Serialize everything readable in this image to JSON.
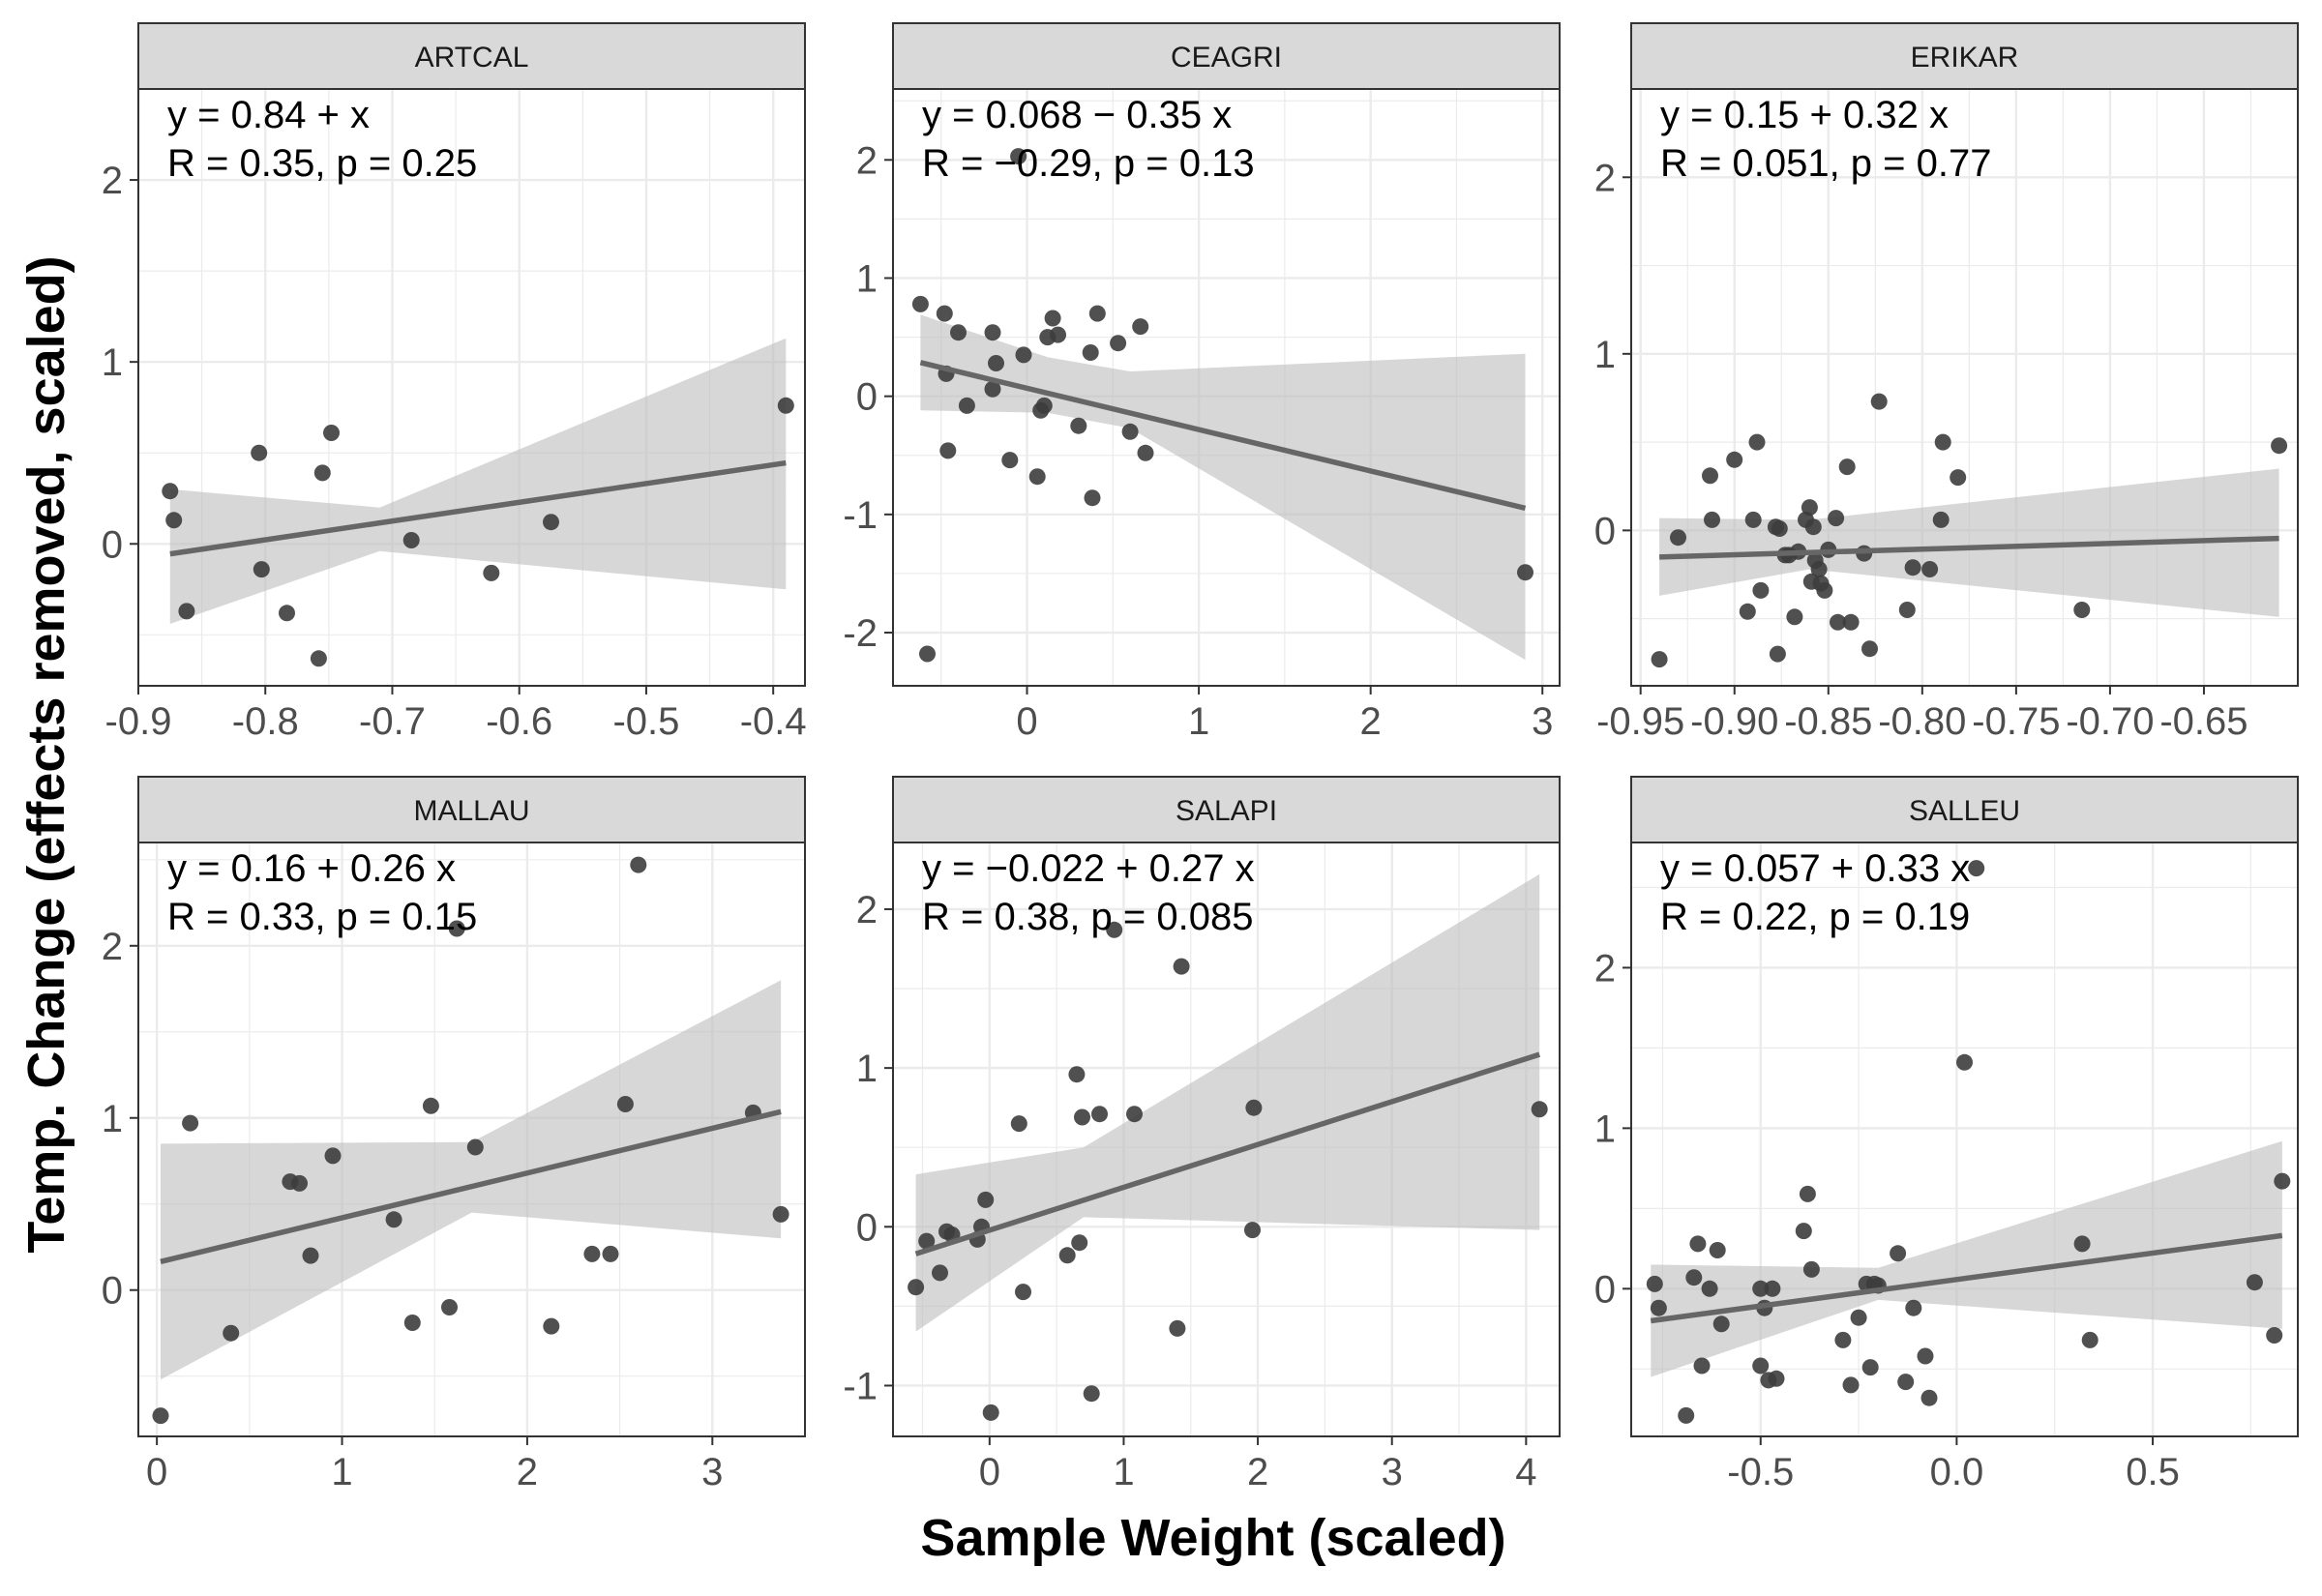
{
  "figure": {
    "xlabel": "Sample Weight (scaled)",
    "ylabel": "Temp. Change (effects removed, scaled)"
  },
  "colors": {
    "point": "#3d3d3d",
    "fit_line": "#666666",
    "ribbon": "#bdbdbd",
    "strip_bg": "#d9d9d9",
    "grid": "#ebebeb",
    "panel_border": "#333333"
  },
  "chart_data": [
    {
      "type": "scatter",
      "title": "ARTCAL",
      "equation": "y = 0.84 +  x",
      "stats": "R = 0.35, p = 0.25",
      "xlim": [
        -0.9,
        -0.375
      ],
      "ylim": [
        -0.78,
        2.5
      ],
      "xticks": [
        -0.9,
        -0.8,
        -0.7,
        -0.6,
        -0.5,
        -0.4
      ],
      "xtick_labels": [
        "-0.9",
        "-0.8",
        "-0.7",
        "-0.6",
        "-0.5",
        "-0.4"
      ],
      "yticks": [
        0,
        1,
        2
      ],
      "ytick_labels": [
        "0",
        "1",
        "2"
      ],
      "x": [
        -0.875,
        -0.872,
        -0.862,
        -0.805,
        -0.803,
        -0.783,
        -0.758,
        -0.755,
        -0.748,
        -0.685,
        -0.622,
        -0.575,
        -0.39
      ],
      "y": [
        0.29,
        0.13,
        -0.37,
        0.5,
        -0.14,
        -0.38,
        -0.63,
        0.39,
        0.61,
        0.02,
        -0.16,
        0.12,
        0.76
      ],
      "fit": {
        "x": [
          -0.875,
          -0.39
        ],
        "y": [
          -0.055,
          0.445
        ]
      },
      "ci": {
        "x": [
          -0.875,
          -0.71,
          -0.39
        ],
        "lower": [
          -0.44,
          -0.04,
          -0.25
        ],
        "upper": [
          0.3,
          0.2,
          1.13
        ]
      }
    },
    {
      "type": "scatter",
      "title": "CEAGRI",
      "equation": "y = 0.068 − 0.35 x",
      "stats": "R = −0.29, p = 0.13",
      "xlim": [
        -0.78,
        3.1
      ],
      "ylim": [
        -2.45,
        2.6
      ],
      "xticks": [
        0,
        1,
        2,
        3
      ],
      "xtick_labels": [
        "0",
        "1",
        "2",
        "3"
      ],
      "yticks": [
        -2,
        -1,
        0,
        1,
        2
      ],
      "ytick_labels": [
        "-2",
        "-1",
        "0",
        "1",
        "2"
      ],
      "x": [
        -0.62,
        -0.58,
        -0.48,
        -0.47,
        -0.46,
        -0.4,
        -0.35,
        -0.2,
        -0.2,
        -0.18,
        -0.1,
        -0.05,
        -0.02,
        0.06,
        0.08,
        0.1,
        0.12,
        0.15,
        0.18,
        0.3,
        0.37,
        0.38,
        0.41,
        0.53,
        0.6,
        0.66,
        0.69,
        2.9
      ],
      "y": [
        0.78,
        -2.18,
        0.7,
        0.19,
        -0.46,
        0.54,
        -0.08,
        0.54,
        0.06,
        0.28,
        -0.54,
        2.03,
        0.35,
        -0.68,
        -0.12,
        -0.08,
        0.5,
        0.66,
        0.52,
        -0.25,
        0.37,
        -0.86,
        0.7,
        0.45,
        -0.3,
        0.59,
        -0.48,
        -1.49
      ],
      "fit": {
        "x": [
          -0.62,
          2.9
        ],
        "y": [
          0.285,
          -0.947
        ]
      },
      "ci": {
        "x": [
          -0.62,
          0.12,
          0.6,
          2.9
        ],
        "lower": [
          -0.12,
          -0.14,
          -0.27,
          -2.23
        ],
        "upper": [
          0.69,
          0.33,
          0.21,
          0.36
        ]
      }
    },
    {
      "type": "scatter",
      "title": "ERIKAR",
      "equation": "y = 0.15 + 0.32 x",
      "stats": "R = 0.051, p = 0.77",
      "xlim": [
        -0.955,
        -0.6
      ],
      "ylim": [
        -0.88,
        2.5
      ],
      "xticks": [
        -0.95,
        -0.9,
        -0.85,
        -0.8,
        -0.75,
        -0.7,
        -0.65
      ],
      "xtick_labels": [
        "-0.95",
        "-0.90",
        "-0.85",
        "-0.80",
        "-0.75",
        "-0.70",
        "-0.65"
      ],
      "yticks": [
        0,
        1,
        2
      ],
      "ytick_labels": [
        "0",
        "1",
        "2"
      ],
      "x": [
        -0.94,
        -0.93,
        -0.913,
        -0.912,
        -0.9,
        -0.893,
        -0.89,
        -0.888,
        -0.886,
        -0.878,
        -0.877,
        -0.876,
        -0.873,
        -0.871,
        -0.868,
        -0.866,
        -0.862,
        -0.86,
        -0.859,
        -0.858,
        -0.857,
        -0.855,
        -0.854,
        -0.852,
        -0.85,
        -0.846,
        -0.845,
        -0.84,
        -0.838,
        -0.831,
        -0.828,
        -0.823,
        -0.808,
        -0.805,
        -0.796,
        -0.79,
        -0.789,
        -0.781,
        -0.715,
        -0.61
      ],
      "y": [
        -0.73,
        -0.04,
        0.31,
        0.06,
        0.4,
        -0.46,
        0.06,
        0.5,
        -0.34,
        0.02,
        -0.7,
        0.01,
        -0.14,
        -0.14,
        -0.49,
        -0.12,
        0.06,
        0.13,
        -0.29,
        0.02,
        -0.17,
        -0.22,
        -0.3,
        -0.34,
        -0.11,
        0.07,
        -0.52,
        0.36,
        -0.52,
        -0.13,
        -0.67,
        0.73,
        -0.45,
        -0.21,
        -0.22,
        0.06,
        0.5,
        0.3,
        -0.45,
        0.48
      ],
      "fit": {
        "x": [
          -0.94,
          -0.61
        ],
        "y": [
          -0.151,
          -0.045
        ]
      },
      "ci": {
        "x": [
          -0.94,
          -0.86,
          -0.61
        ],
        "lower": [
          -0.37,
          -0.22,
          -0.49
        ],
        "upper": [
          0.07,
          0.06,
          0.35
        ]
      }
    },
    {
      "type": "scatter",
      "title": "MALLAU",
      "equation": "y = 0.16 + 0.26 x",
      "stats": "R = 0.33, p = 0.15",
      "xlim": [
        -0.1,
        3.5
      ],
      "ylim": [
        -0.85,
        2.6
      ],
      "xticks": [
        0,
        1,
        2,
        3
      ],
      "xtick_labels": [
        "0",
        "1",
        "2",
        "3"
      ],
      "yticks": [
        0,
        1,
        2
      ],
      "ytick_labels": [
        "0",
        "1",
        "2"
      ],
      "x": [
        0.02,
        0.18,
        0.4,
        0.72,
        0.77,
        0.83,
        0.95,
        1.28,
        1.38,
        1.48,
        1.58,
        1.62,
        1.72,
        2.13,
        2.35,
        2.45,
        2.53,
        2.6,
        3.22,
        3.37
      ],
      "y": [
        -0.73,
        0.97,
        -0.25,
        0.63,
        0.62,
        0.2,
        0.78,
        0.41,
        -0.19,
        1.07,
        -0.1,
        2.1,
        0.83,
        -0.21,
        0.21,
        0.21,
        1.08,
        2.47,
        1.03,
        0.44
      ],
      "fit": {
        "x": [
          0.02,
          3.37
        ],
        "y": [
          0.165,
          1.036
        ]
      },
      "ci": {
        "x": [
          0.02,
          1.7,
          3.37
        ],
        "lower": [
          -0.52,
          0.45,
          0.3
        ],
        "upper": [
          0.85,
          0.86,
          1.8
        ]
      }
    },
    {
      "type": "scatter",
      "title": "SALAPI",
      "equation": "y = −0.022 + 0.27 x",
      "stats": "R = 0.38, p = 0.085",
      "xlim": [
        -0.72,
        4.25
      ],
      "ylim": [
        -1.32,
        2.42
      ],
      "xticks": [
        0,
        1,
        2,
        3,
        4
      ],
      "xtick_labels": [
        "0",
        "1",
        "2",
        "3",
        "4"
      ],
      "yticks": [
        -1,
        0,
        1,
        2
      ],
      "ytick_labels": [
        "-1",
        "0",
        "1",
        "2"
      ],
      "x": [
        -0.55,
        -0.47,
        -0.37,
        -0.32,
        -0.28,
        -0.09,
        -0.06,
        -0.03,
        0.01,
        0.22,
        0.25,
        0.58,
        0.65,
        0.67,
        0.69,
        0.76,
        0.82,
        0.93,
        1.08,
        1.4,
        1.43,
        1.96,
        1.97,
        4.1
      ],
      "y": [
        -0.38,
        -0.09,
        -0.29,
        -0.03,
        -0.05,
        -0.08,
        0.0,
        0.17,
        -1.17,
        0.65,
        -0.41,
        -0.18,
        0.96,
        -0.1,
        0.69,
        -1.05,
        0.71,
        1.87,
        0.71,
        -0.64,
        1.64,
        -0.02,
        0.75,
        0.74
      ],
      "fit": {
        "x": [
          -0.55,
          4.1
        ],
        "y": [
          -0.17,
          1.085
        ]
      },
      "ci": {
        "x": [
          -0.55,
          0.7,
          4.1
        ],
        "lower": [
          -0.66,
          0.06,
          -0.02
        ],
        "upper": [
          0.33,
          0.5,
          2.22
        ]
      }
    },
    {
      "type": "scatter",
      "title": "SALLEU",
      "equation": "y = 0.057 + 0.33 x",
      "stats": "R = 0.22, p = 0.19",
      "xlim": [
        -0.83,
        0.87
      ],
      "ylim": [
        -0.92,
        2.78
      ],
      "xticks": [
        -0.5,
        0.0,
        0.5
      ],
      "xtick_labels": [
        "-0.5",
        "0.0",
        "0.5"
      ],
      "yticks": [
        0,
        1,
        2
      ],
      "ytick_labels": [
        "0",
        "1",
        "2"
      ],
      "x": [
        -0.77,
        -0.76,
        -0.69,
        -0.67,
        -0.66,
        -0.65,
        -0.63,
        -0.61,
        -0.6,
        -0.5,
        -0.5,
        -0.49,
        -0.48,
        -0.47,
        -0.46,
        -0.39,
        -0.38,
        -0.37,
        -0.29,
        -0.27,
        -0.25,
        -0.23,
        -0.22,
        -0.21,
        -0.2,
        -0.15,
        -0.13,
        -0.11,
        -0.08,
        -0.07,
        0.02,
        0.05,
        0.32,
        0.34,
        0.76,
        0.81,
        0.83
      ],
      "y": [
        0.03,
        -0.12,
        -0.79,
        0.07,
        0.28,
        -0.48,
        0.0,
        0.24,
        -0.22,
        0.0,
        -0.48,
        -0.12,
        -0.57,
        0.0,
        -0.56,
        0.36,
        0.59,
        0.12,
        -0.32,
        -0.6,
        -0.18,
        0.03,
        -0.49,
        0.03,
        0.02,
        0.22,
        -0.58,
        -0.12,
        -0.42,
        -0.68,
        1.41,
        2.62,
        0.28,
        -0.32,
        0.04,
        -0.29,
        0.67
      ],
      "fit": {
        "x": [
          -0.78,
          0.83
        ],
        "y": [
          -0.2,
          0.331
        ]
      },
      "ci": {
        "x": [
          -0.78,
          -0.2,
          0.83
        ],
        "lower": [
          -0.55,
          -0.07,
          -0.25
        ],
        "upper": [
          0.15,
          0.13,
          0.92
        ]
      }
    }
  ]
}
